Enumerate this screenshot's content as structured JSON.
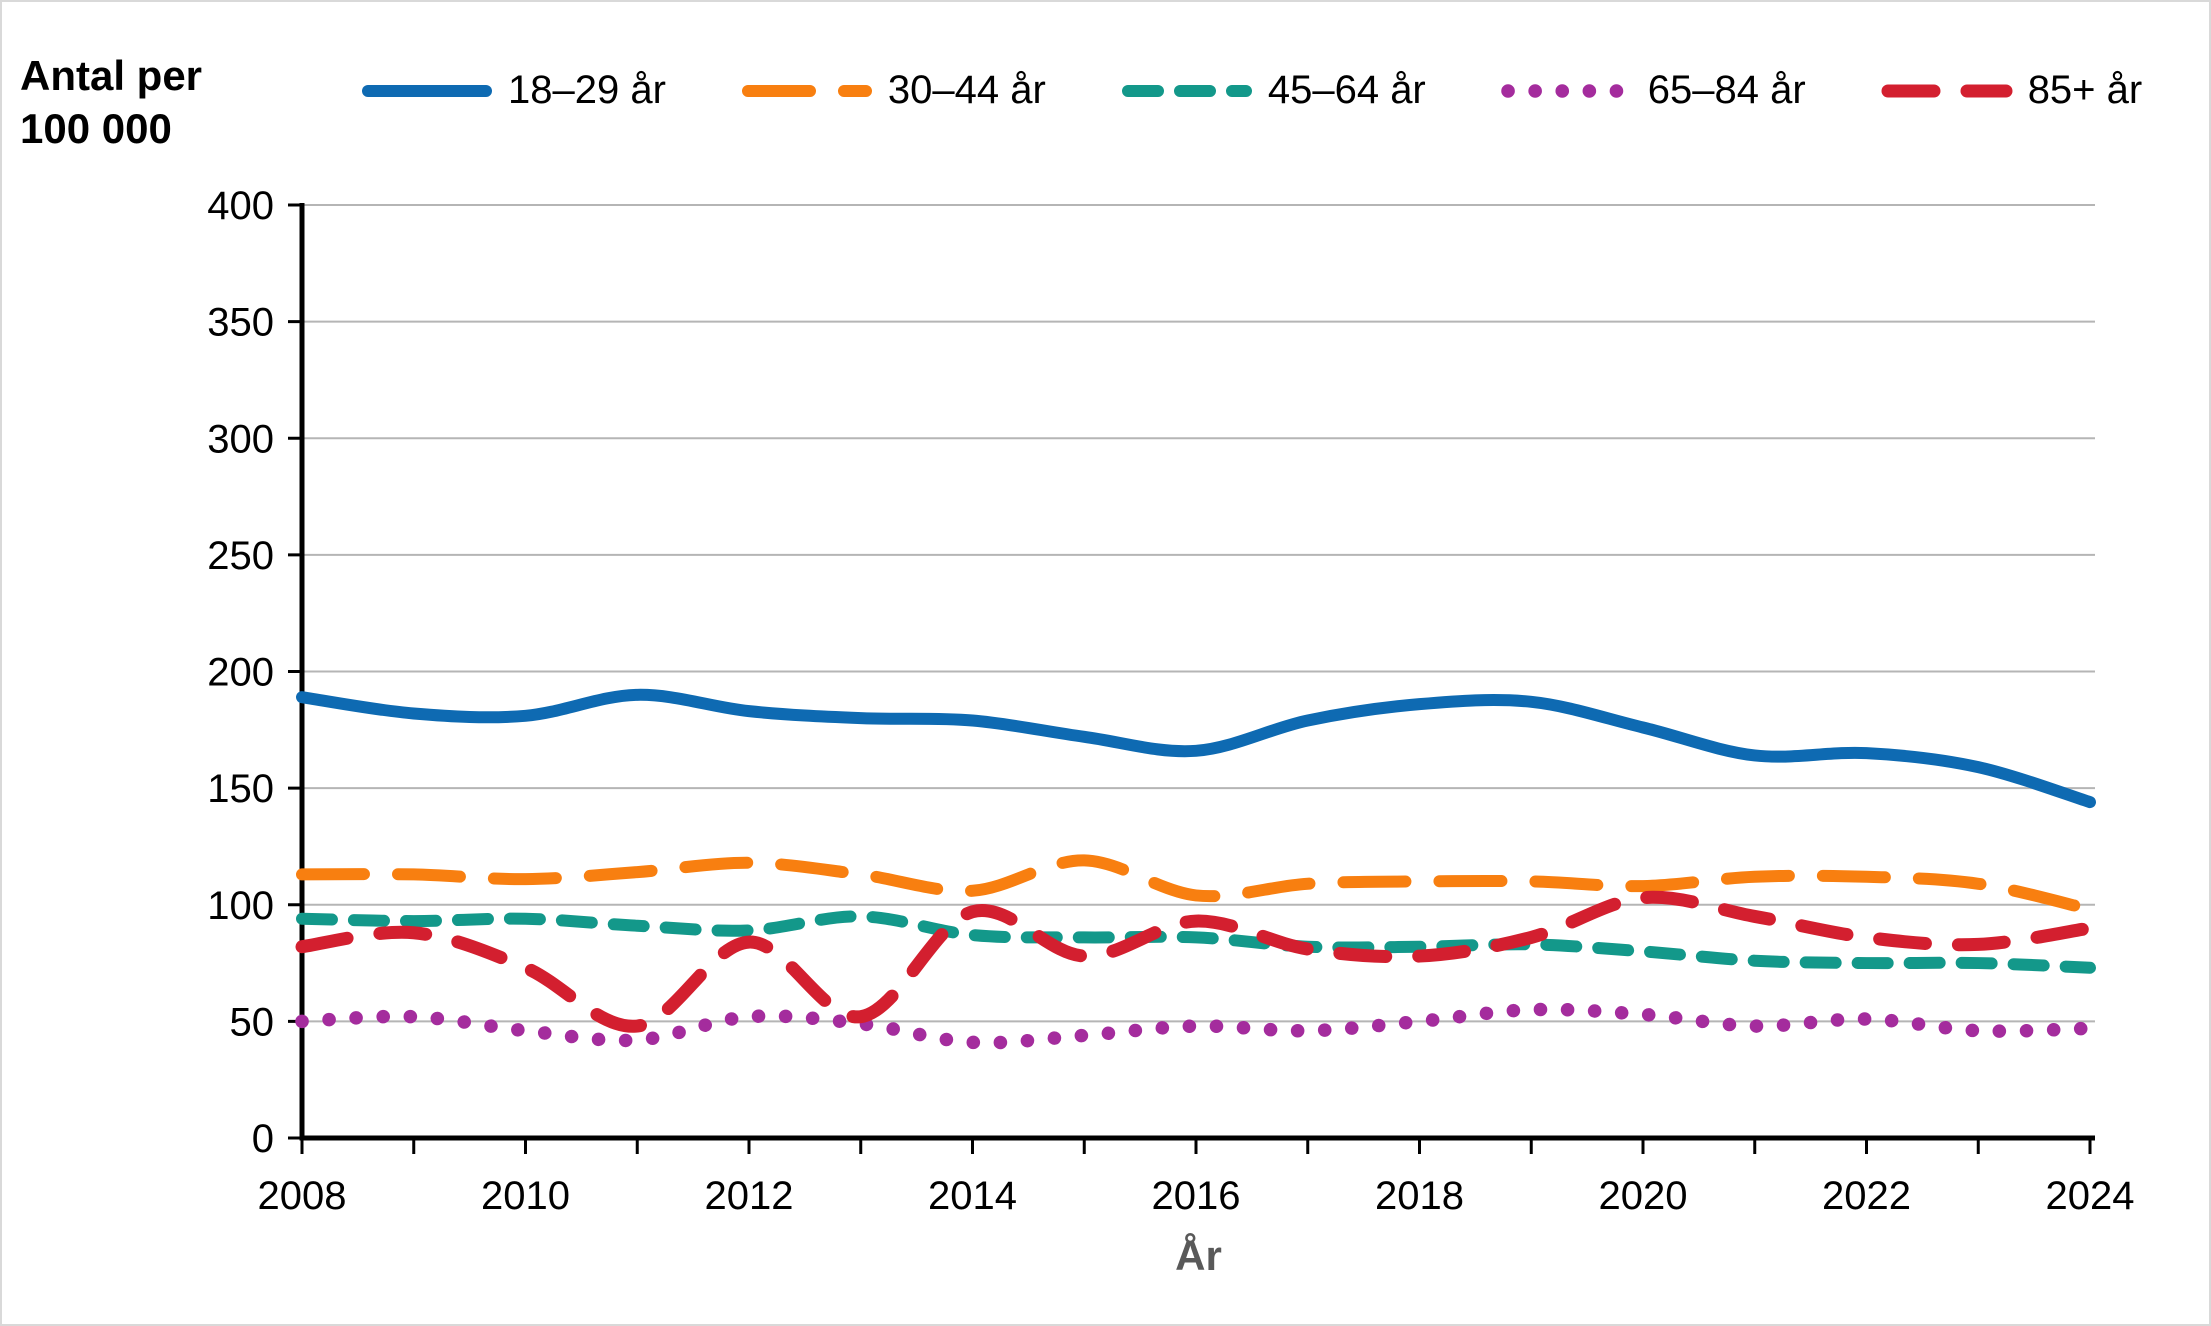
{
  "figure": {
    "y_axis_title": "Antal per\n100 000",
    "x_axis_label": "År"
  },
  "colors": {
    "axis": "#000000",
    "grid": "#b5b5b5",
    "x_axis_label_text": "#595959",
    "tick_label_text": "#000000"
  },
  "chart_data": {
    "type": "line",
    "title": "",
    "xlabel": "År",
    "ylabel": "Antal per 100 000",
    "x": [
      2008,
      2009,
      2010,
      2011,
      2012,
      2013,
      2014,
      2015,
      2016,
      2017,
      2018,
      2019,
      2020,
      2021,
      2022,
      2023,
      2024
    ],
    "x_labeled_years": [
      "2008",
      "2010",
      "2012",
      "2014",
      "2016",
      "2018",
      "2020",
      "2022",
      "2024"
    ],
    "y_ticks": [
      0,
      50,
      100,
      150,
      200,
      250,
      300,
      350,
      400
    ],
    "ylim": [
      0,
      400
    ],
    "grid": true,
    "legend_position": "top",
    "series": [
      {
        "name": "18–29 år",
        "color": "#0e6ab2",
        "style": "solid",
        "values": [
          189,
          182,
          181,
          190,
          183,
          180,
          179,
          172,
          166,
          179,
          186,
          187,
          176,
          164,
          165,
          159,
          144
        ]
      },
      {
        "name": "30–44 år",
        "color": "#f87f10",
        "style": "dashed-long",
        "values": [
          113,
          113,
          111,
          114,
          118,
          113,
          106,
          119,
          104,
          109,
          110,
          110,
          108,
          112,
          112,
          109,
          98
        ]
      },
      {
        "name": "45–64 år",
        "color": "#13988a",
        "style": "dashed",
        "values": [
          94,
          93,
          94,
          91,
          89,
          95,
          87,
          86,
          86,
          82,
          82,
          83,
          80,
          76,
          75,
          75,
          73
        ]
      },
      {
        "name": "65–84 år",
        "color": "#a42c9d",
        "style": "dotted",
        "values": [
          50,
          52,
          46,
          42,
          52,
          49,
          41,
          44,
          48,
          46,
          50,
          55,
          53,
          48,
          51,
          46,
          47
        ]
      },
      {
        "name": "85+ år",
        "color": "#d31f2f",
        "style": "dashed-medium",
        "values": [
          82,
          88,
          73,
          48,
          84,
          52,
          97,
          78,
          93,
          81,
          78,
          86,
          103,
          95,
          86,
          83,
          90
        ]
      }
    ]
  }
}
